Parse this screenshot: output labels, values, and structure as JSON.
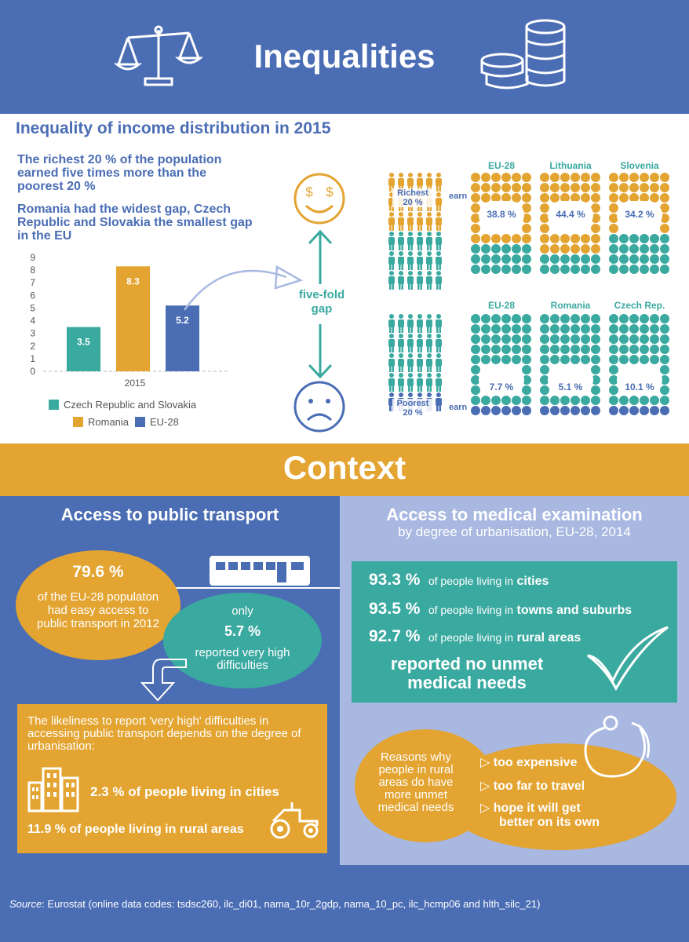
{
  "header": {
    "title": "Inequalities"
  },
  "income": {
    "title": "Inequality of income distribution in 2015",
    "lead1": "The richest 20 % of the population earned five times more than the poorest 20 %",
    "lead2": "Romania had the widest gap, Czech Republic and Slovakia the smallest gap in the EU",
    "gap_line1": "five-fold",
    "gap_line2": "gap",
    "richest_line1": "Richest",
    "richest_line2": "20 %",
    "poorest_line1": "Poorest",
    "poorest_line2": "20 %",
    "earn": "earn",
    "top_grids": [
      {
        "name": "EU-28",
        "value": "38.8 %"
      },
      {
        "name": "Lithuania",
        "value": "44.4 %"
      },
      {
        "name": "Slovenia",
        "value": "34.2 %"
      }
    ],
    "bottom_grids": [
      {
        "name": "EU-28",
        "value": "7.7 %"
      },
      {
        "name": "Romania",
        "value": "5.1 %"
      },
      {
        "name": "Czech Rep.",
        "value": "10.1 %"
      }
    ]
  },
  "chart_data": {
    "type": "bar",
    "categories": [
      "2015"
    ],
    "series": [
      {
        "name": "Czech Republic and Slovakia",
        "values": [
          3.5
        ],
        "color": "#3aa9a0"
      },
      {
        "name": "Romania",
        "values": [
          8.3
        ],
        "color": "#e3a431"
      },
      {
        "name": "EU-28",
        "values": [
          5.2
        ],
        "color": "#4a6db4"
      }
    ],
    "value_labels": [
      "3.5",
      "8.3",
      "5.2"
    ],
    "yticks": [
      "0",
      "1",
      "2",
      "3",
      "4",
      "5",
      "6",
      "7",
      "8",
      "9"
    ],
    "ylim": [
      0,
      9
    ],
    "legend_placement": "bottom",
    "grid": false
  },
  "context": {
    "title": "Context",
    "transport": {
      "title": "Access to public transport",
      "pct1": "79.6 %",
      "text1": "of the EU-28 populaton had easy access to public transport in 2012",
      "only": "only",
      "pct2": "5.7 %",
      "text2": "reported very high difficulties",
      "likeliness": "The likeliness to report 'very high' difficulties in accessing public transport depends on the degree of urbanisation:",
      "cities": "2.3 % of people living in cities",
      "rural": "11.9 % of people living in rural areas"
    },
    "medical": {
      "title": "Access to medical examination",
      "subtitle": "by degree of urbanisation, EU-28, 2014",
      "rows": [
        {
          "pct": "93.3 %",
          "prefix": "of people living in",
          "place": "cities"
        },
        {
          "pct": "93.5 %",
          "prefix": "of people living in",
          "place": "towns and suburbs"
        },
        {
          "pct": "92.7 %",
          "prefix": "of people living in",
          "place": "rural areas"
        }
      ],
      "conclusion": "reported no unmet medical needs",
      "reasons_title": "Reasons why people in rural areas do have more unmet medical needs",
      "reasons": [
        "too expensive",
        "too far to travel",
        "hope it will get better on its own"
      ]
    }
  },
  "footer": {
    "source_label": "Source",
    "source_text": ": Eurostat (online data codes: tsdsc260, ilc_di01, nama_10r_2gdp, nama_10_pc, ilc_hcmp06 and hlth_silc_21)"
  },
  "colors": {
    "blue": "#4a6db4",
    "teal": "#3aa9a0",
    "orange": "#e3a431",
    "light_blue": "#a8b8e0"
  }
}
